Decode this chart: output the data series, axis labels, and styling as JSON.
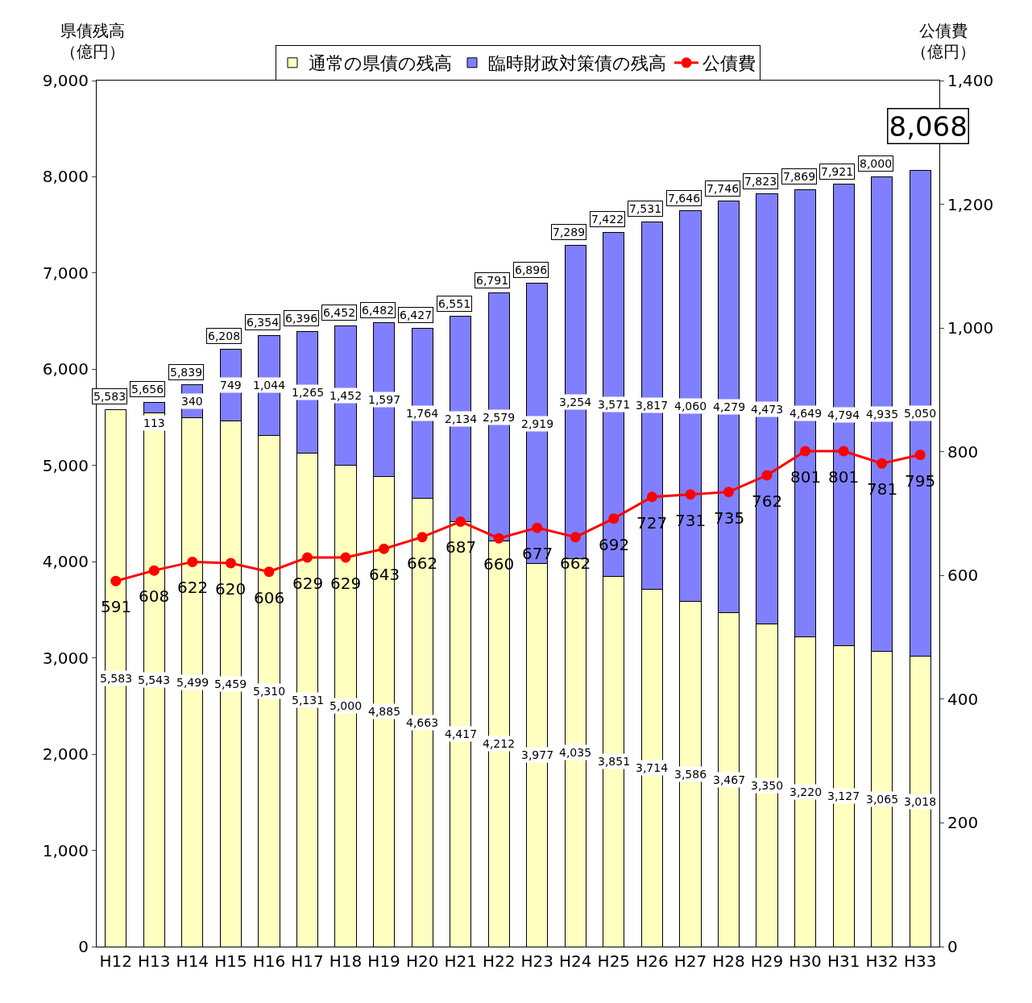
{
  "chart_data": {
    "type": "bar",
    "stacked": true,
    "categories": [
      "H12",
      "H13",
      "H14",
      "H15",
      "H16",
      "H17",
      "H18",
      "H19",
      "H20",
      "H21",
      "H22",
      "H23",
      "H24",
      "H25",
      "H26",
      "H27",
      "H28",
      "H29",
      "H30",
      "H31",
      "H32",
      "H33"
    ],
    "series": [
      {
        "name": "通常の県債の残高",
        "color": "#ffffc0",
        "values": [
          5583,
          5543,
          5499,
          5459,
          5310,
          5131,
          5000,
          4885,
          4663,
          4417,
          4212,
          3977,
          4035,
          3851,
          3714,
          3586,
          3467,
          3350,
          3220,
          3127,
          3065,
          3018
        ],
        "value_labels": [
          "5,583",
          "5,543",
          "5,499",
          "5,459",
          "5,310",
          "5,131",
          "5,000",
          "4,885",
          "4,663",
          "4,417",
          "4,212",
          "3,977",
          "4,035",
          "3,851",
          "3,714",
          "3,586",
          "3,467",
          "3,350",
          "3,220",
          "3,127",
          "3,065",
          "3,018"
        ]
      },
      {
        "name": "臨時財政対策債の残高",
        "color": "#8080ff",
        "values": [
          null,
          113,
          340,
          749,
          1044,
          1265,
          1452,
          1597,
          1764,
          2134,
          2579,
          2919,
          3254,
          3571,
          3817,
          4060,
          4279,
          4473,
          4649,
          4794,
          4935,
          5050
        ],
        "value_labels": [
          null,
          "113",
          "340",
          "749",
          "1,044",
          "1,265",
          "1,452",
          "1,597",
          "1,764",
          "2,134",
          "2,579",
          "2,919",
          "3,254",
          "3,571",
          "3,817",
          "4,060",
          "4,279",
          "4,473",
          "4,649",
          "4,794",
          "4,935",
          "5,050"
        ]
      },
      {
        "name": "公債費",
        "type": "line",
        "axis": "y2",
        "color": "#ff0000",
        "marker": "circle",
        "values": [
          591,
          608,
          622,
          620,
          606,
          629,
          629,
          643,
          662,
          687,
          660,
          677,
          662,
          692,
          727,
          731,
          735,
          762,
          801,
          801,
          781,
          795
        ],
        "value_labels": [
          "591",
          "608",
          "622",
          "620",
          "606",
          "629",
          "629",
          "643",
          "662",
          "687",
          "660",
          "677",
          "662",
          "692",
          "727",
          "731",
          "735",
          "762",
          "801",
          "801",
          "781",
          "795"
        ]
      }
    ],
    "totals": [
      "5,583",
      "5,656",
      "5,839",
      "6,208",
      "6,354",
      "6,396",
      "6,452",
      "6,482",
      "6,427",
      "6,551",
      "6,791",
      "6,896",
      "7,289",
      "7,422",
      "7,531",
      "7,646",
      "7,746",
      "7,823",
      "7,869",
      "7,921",
      "8,000",
      "8,068"
    ],
    "ylabel": "県債残高（億円）",
    "y2label": "公債費（億円）",
    "ylim": [
      0,
      9000
    ],
    "yticks": [
      {
        "value": 0,
        "label": "0"
      },
      {
        "value": 1000,
        "label": "1,000"
      },
      {
        "value": 2000,
        "label": "2,000"
      },
      {
        "value": 3000,
        "label": "3,000"
      },
      {
        "value": 4000,
        "label": "4,000"
      },
      {
        "value": 5000,
        "label": "5,000"
      },
      {
        "value": 6000,
        "label": "6,000"
      },
      {
        "value": 7000,
        "label": "7,000"
      },
      {
        "value": 8000,
        "label": "8,000"
      },
      {
        "value": 9000,
        "label": "9,000"
      }
    ],
    "y2lim": [
      0,
      1400
    ],
    "y2ticks": [
      0,
      200,
      400,
      600,
      800,
      {
        "value": 1000,
        "label": "1,000"
      },
      {
        "value": 1200,
        "label": "1,200"
      },
      {
        "value": 1400,
        "label": "1,400"
      }
    ],
    "legend": "top"
  }
}
